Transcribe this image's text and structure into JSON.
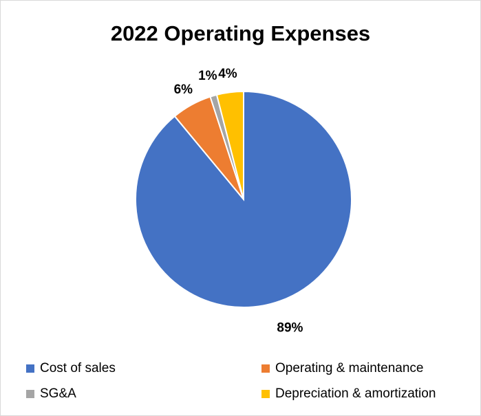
{
  "chart_data": {
    "type": "pie",
    "title": "2022 Operating Expenses",
    "categories": [
      "Cost of sales",
      "Operating & maintenance",
      "SG&A",
      "Depreciation & amortization"
    ],
    "values": [
      89,
      6,
      1,
      4
    ],
    "value_labels": [
      "89%",
      "6%",
      "1%",
      "4%"
    ],
    "colors": [
      "#4472C4",
      "#ED7D31",
      "#A5A5A5",
      "#FFC000"
    ],
    "legend_position": "bottom",
    "start_angle_deg": 0,
    "direction": "clockwise"
  }
}
